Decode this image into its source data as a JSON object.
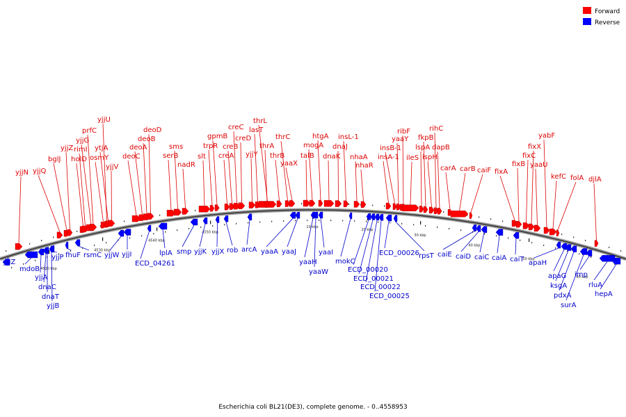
{
  "legend": {
    "forward_label": "Forward",
    "reverse_label": "Reverse",
    "forward_color": "#ff0000",
    "reverse_color": "#0000ff",
    "forward_text_color": "#dd0000",
    "reverse_text_color": "#0000cc"
  },
  "caption": "Escherichia coli BL21(DE3), complete genome. - 0..4558953",
  "scale_ticks": [
    "4520 kbp",
    "4530 kbp",
    "4540 kbp",
    "4550 kbp",
    "10 kbp",
    "20 kbp",
    "30 kbp",
    "40 kbp",
    "50 kbp",
    "60 kbp"
  ],
  "forward_genes": [
    "yjjN",
    "yjjQ",
    "bglJ",
    "yjjZ",
    "holD",
    "rimI",
    "yjjG",
    "prfC",
    "osmY",
    "yjjU",
    "ytjA",
    "yjjV",
    "deoC",
    "deoA",
    "deoB",
    "deoD",
    "serB",
    "sms",
    "nadR",
    "slt",
    "trpR",
    "gpmB",
    "creA",
    "creB",
    "creC",
    "creD",
    "yjjY",
    "lasT",
    "thrL",
    "thrA",
    "thrB",
    "thrC",
    "yaaX",
    "talB",
    "mogA",
    "htgA",
    "dnaK",
    "dnaJ",
    "insL-1",
    "nhaA",
    "nhaR",
    "insA-1",
    "insB-1",
    "yaaY",
    "ribF",
    "ileS",
    "lspA",
    "fkpB",
    "ispH",
    "rihC",
    "dapB",
    "carA",
    "carB",
    "caiF",
    "fixA",
    "fixB",
    "fixC",
    "fixX",
    "yaaU",
    "yabF",
    "kefC",
    "folA",
    "djlA"
  ],
  "reverse_genes": [
    "yjiZ",
    "mdoB",
    "yjjA",
    "dnaC",
    "dnaT",
    "yjjB",
    "yjjP",
    "fhuF",
    "rsmC",
    "yjjW",
    "yjjI",
    "ECD_04261",
    "lplA",
    "smp",
    "yjjK",
    "yjjX",
    "rob",
    "arcA",
    "yaaA",
    "yaaJ",
    "yaaH",
    "yaaW",
    "yaaI",
    "mokC",
    "ECD_00020",
    "ECD_00021",
    "ECD_00022",
    "ECD_00025",
    "ECD_00026",
    "rpsT",
    "caiE",
    "caiD",
    "caiC",
    "caiA",
    "caiT",
    "apaH",
    "apaG",
    "ksgA",
    "pdxA",
    "surA",
    "imp",
    "rluA",
    "hepA"
  ]
}
